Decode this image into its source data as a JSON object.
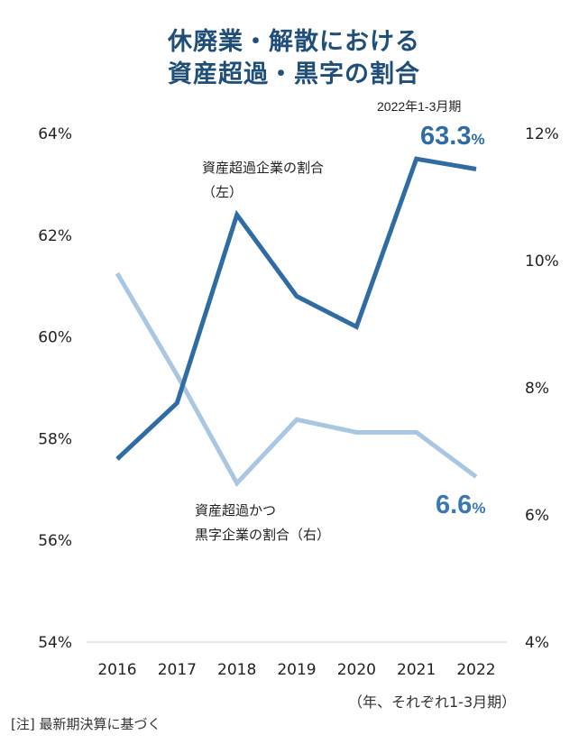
{
  "title_line1": "休廃業・解散における",
  "title_line2": "資産超過・黒字の割合",
  "period_label": "2022年1-3月期",
  "unit_note": "（年、それぞれ1-3月期）",
  "footnote": "[注]  最新期決算に基づく",
  "colors": {
    "title": "#1f4e79",
    "series_left": "#2f6ca3",
    "series_right": "#a9c7e3",
    "label_right": "#3a78b5"
  },
  "chart_data": {
    "type": "line",
    "categories": [
      "2016",
      "2017",
      "2018",
      "2019",
      "2020",
      "2021",
      "2022"
    ],
    "y_left": {
      "min": 54,
      "max": 64,
      "ticks": [
        "54%",
        "56%",
        "58%",
        "60%",
        "62%",
        "64%"
      ]
    },
    "y_right": {
      "min": 4,
      "max": 12,
      "ticks": [
        "4%",
        "6%",
        "8%",
        "10%",
        "12%"
      ]
    },
    "series": [
      {
        "name": "資産超過企業の割合",
        "name_suffix": "（左）",
        "axis": "left",
        "values": [
          57.6,
          58.7,
          62.4,
          60.8,
          60.2,
          63.5,
          63.3
        ],
        "end_label_value": "63.3",
        "end_label_unit": "%"
      },
      {
        "name": "資産超過かつ",
        "name_line2": "黒字企業の割合（右）",
        "axis": "right",
        "values": [
          9.8,
          8.2,
          6.5,
          7.5,
          7.3,
          7.3,
          6.6
        ],
        "end_label_value": "6.6",
        "end_label_unit": "%"
      }
    ]
  }
}
